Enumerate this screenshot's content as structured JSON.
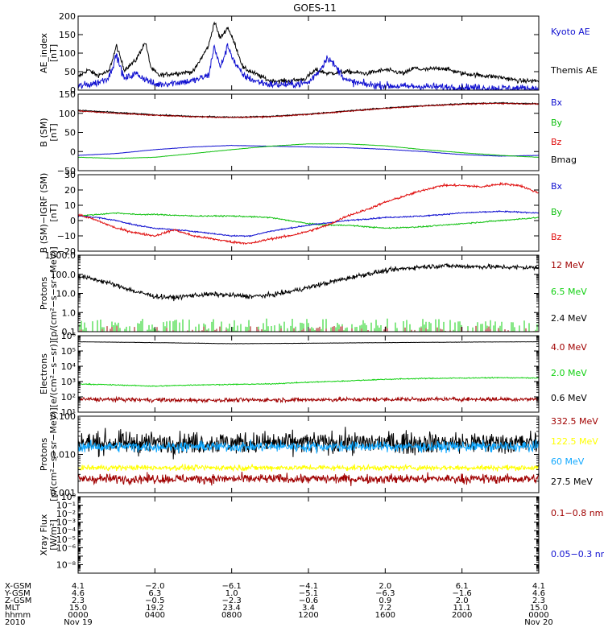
{
  "title": "GOES-11",
  "colors": {
    "black": "#000000",
    "blue": "#1010d0",
    "green": "#10c010",
    "red": "#e01010",
    "darkred": "#a00000",
    "lightgreen": "#10d010",
    "cyan": "#10a8ff",
    "yellow": "#ffff00"
  },
  "chart_data": [
    {
      "id": "ae",
      "type": "line",
      "ylabel": [
        "AE_index",
        "[nT]"
      ],
      "ylim": [
        0,
        200
      ],
      "scale": "linear",
      "yticks": [
        {
          "v": 0,
          "label": "0"
        },
        {
          "v": 50,
          "label": "50"
        },
        {
          "v": 100,
          "label": "100"
        },
        {
          "v": 150,
          "label": "150"
        },
        {
          "v": 200,
          "label": "200"
        }
      ],
      "legend": [
        {
          "text": "Kyoto AE",
          "color": "blue"
        },
        {
          "text": "Themis AE",
          "color": "black"
        }
      ],
      "series": [
        {
          "name": "Themis AE",
          "color": "black",
          "noise": 6,
          "x": [
            0,
            0.5,
            1,
            1.6,
            2,
            2.4,
            3,
            3.5,
            3.8,
            4.2,
            5,
            6,
            6.8,
            7.1,
            7.4,
            7.8,
            8.2,
            8.6,
            9.2,
            10,
            11,
            11.8,
            12.4,
            13,
            14,
            15,
            16,
            17,
            17.5,
            18,
            19,
            20,
            21,
            22,
            23,
            24
          ],
          "y": [
            35,
            55,
            40,
            50,
            120,
            55,
            80,
            130,
            60,
            40,
            45,
            50,
            120,
            185,
            140,
            170,
            120,
            60,
            45,
            25,
            25,
            30,
            55,
            45,
            50,
            45,
            55,
            45,
            60,
            55,
            60,
            45,
            40,
            35,
            25,
            25
          ]
        },
        {
          "name": "Kyoto AE",
          "color": "blue",
          "noise": 10,
          "x": [
            0,
            0.5,
            1,
            1.6,
            2,
            2.4,
            3,
            3.5,
            4,
            5,
            6,
            6.8,
            7.1,
            7.4,
            7.8,
            8.2,
            8.6,
            9.2,
            10,
            11,
            12,
            12.6,
            13,
            14,
            15,
            16,
            17,
            18,
            19,
            20,
            21,
            22,
            23,
            24
          ],
          "y": [
            10,
            15,
            20,
            35,
            95,
            30,
            45,
            30,
            15,
            20,
            25,
            40,
            120,
            60,
            120,
            70,
            40,
            25,
            15,
            15,
            20,
            55,
            90,
            25,
            15,
            12,
            10,
            10,
            8,
            8,
            6,
            5,
            5,
            5
          ]
        }
      ]
    },
    {
      "id": "b_sm",
      "type": "line",
      "ylabel": [
        "B (SM)",
        "[nT]"
      ],
      "ylim": [
        -50,
        150
      ],
      "scale": "linear",
      "yticks": [
        {
          "v": -50,
          "label": "−50"
        },
        {
          "v": 0,
          "label": "0"
        },
        {
          "v": 50,
          "label": "50"
        },
        {
          "v": 100,
          "label": "100"
        },
        {
          "v": 150,
          "label": "150"
        }
      ],
      "legend": [
        {
          "text": "Bx",
          "color": "blue"
        },
        {
          "text": "By",
          "color": "green"
        },
        {
          "text": "Bz",
          "color": "red"
        },
        {
          "text": "Bmag",
          "color": "black"
        }
      ],
      "series": [
        {
          "name": "Bmag",
          "color": "black",
          "noise": 1.5,
          "x": [
            0,
            2,
            4,
            6,
            8,
            10,
            12,
            14,
            16,
            18,
            20,
            22,
            24
          ],
          "y": [
            108,
            102,
            96,
            92,
            90,
            92,
            98,
            106,
            114,
            120,
            125,
            127,
            125
          ]
        },
        {
          "name": "Bz",
          "color": "darkred",
          "noise": 1.5,
          "x": [
            0,
            2,
            4,
            6,
            8,
            10,
            12,
            14,
            16,
            18,
            20,
            22,
            24
          ],
          "y": [
            106,
            100,
            95,
            91,
            89,
            91,
            97,
            105,
            113,
            119,
            124,
            126,
            124
          ]
        },
        {
          "name": "Bx",
          "color": "blue",
          "noise": 0.4,
          "x": [
            0,
            2,
            4,
            6,
            8,
            10,
            12,
            14,
            16,
            18,
            20,
            22,
            24
          ],
          "y": [
            -10,
            -5,
            5,
            12,
            16,
            14,
            12,
            10,
            6,
            0,
            -8,
            -12,
            -10
          ]
        },
        {
          "name": "By",
          "color": "green",
          "noise": 0.4,
          "x": [
            0,
            2,
            4,
            6,
            8,
            10,
            12,
            14,
            16,
            18,
            20,
            22,
            24
          ],
          "y": [
            -15,
            -18,
            -15,
            -5,
            5,
            14,
            20,
            20,
            15,
            5,
            -3,
            -10,
            -15
          ]
        }
      ]
    },
    {
      "id": "b_igrf",
      "type": "line",
      "ylabel": [
        "B (SM)−IGRF (SM)",
        "[nT]"
      ],
      "ylim": [
        -20,
        30
      ],
      "scale": "linear",
      "yticks": [
        {
          "v": -20,
          "label": "−20"
        },
        {
          "v": -10,
          "label": "−10"
        },
        {
          "v": 0,
          "label": "0"
        },
        {
          "v": 10,
          "label": "10"
        },
        {
          "v": 20,
          "label": "20"
        },
        {
          "v": 30,
          "label": "30"
        }
      ],
      "legend": [
        {
          "text": "Bx",
          "color": "blue"
        },
        {
          "text": "By",
          "color": "green"
        },
        {
          "text": "Bz",
          "color": "red"
        }
      ],
      "series": [
        {
          "name": "By",
          "color": "green",
          "noise": 0.4,
          "x": [
            0,
            1,
            2,
            3,
            4,
            6,
            8,
            10,
            12,
            13,
            14,
            16,
            18,
            20,
            22,
            24
          ],
          "y": [
            3,
            4,
            5,
            4,
            4,
            3,
            3,
            2,
            -2,
            -3,
            -3,
            -5,
            -4,
            -2,
            0,
            2
          ]
        },
        {
          "name": "Bx",
          "color": "blue",
          "noise": 0.4,
          "x": [
            0,
            1,
            2,
            3,
            4,
            6,
            8,
            9,
            10,
            12,
            14,
            16,
            18,
            20,
            22,
            24
          ],
          "y": [
            3,
            2,
            0,
            -3,
            -5,
            -7,
            -10,
            -10,
            -7,
            -3,
            0,
            2,
            3,
            5,
            6,
            5
          ]
        },
        {
          "name": "Bz",
          "color": "red",
          "noise": 0.7,
          "x": [
            0,
            1,
            2,
            3,
            4,
            5,
            6,
            7,
            8,
            9,
            10,
            11,
            12,
            13,
            14,
            15,
            16,
            17,
            18,
            19,
            20,
            21,
            22,
            23,
            24
          ],
          "y": [
            4,
            0,
            -5,
            -8,
            -10,
            -6,
            -10,
            -12,
            -14,
            -15,
            -12,
            -10,
            -7,
            -3,
            3,
            7,
            12,
            16,
            20,
            23,
            23,
            22,
            24,
            23,
            18
          ]
        }
      ]
    },
    {
      "id": "protons_low",
      "type": "line",
      "ylabel": [
        "Protons",
        "[p/(cm²−s−sr−MeV)]"
      ],
      "ylim": [
        0.1,
        1000
      ],
      "scale": "log",
      "yticks": [
        {
          "v": 0.1,
          "label": "0.1"
        },
        {
          "v": 1,
          "label": "1.0"
        },
        {
          "v": 10,
          "label": "10.0"
        },
        {
          "v": 100,
          "label": "100.0"
        },
        {
          "v": 1000,
          "label": "1000.0"
        }
      ],
      "legend": [
        {
          "text": "12 MeV",
          "color": "darkred"
        },
        {
          "text": "6.5 MeV",
          "color": "lightgreen"
        },
        {
          "text": "2.4 MeV",
          "color": "black"
        }
      ],
      "series": [
        {
          "name": "2.4 MeV",
          "color": "black",
          "noise": 0.12,
          "x": [
            0,
            1,
            2,
            3,
            4,
            5,
            6,
            7,
            8,
            9,
            10,
            11,
            12,
            13,
            14,
            15,
            16,
            17,
            18,
            19,
            20,
            21,
            22,
            23,
            24
          ],
          "y": [
            80,
            50,
            25,
            12,
            7,
            6,
            8,
            9,
            8,
            7,
            8,
            12,
            20,
            35,
            60,
            100,
            150,
            200,
            250,
            280,
            260,
            250,
            240,
            230,
            220
          ]
        },
        {
          "name": "6.5 MeV",
          "color": "lightgreen",
          "spikes": true,
          "base": 0.1,
          "spikeMax": 0.5,
          "density": 0.55
        },
        {
          "name": "12 MeV",
          "color": "darkred",
          "spikes": true,
          "base": 0.1,
          "spikeMax": 0.2,
          "density": 0.25
        }
      ]
    },
    {
      "id": "electrons",
      "type": "line",
      "ylabel": [
        "Electrons",
        "[e/(cm²−s−sr)]"
      ],
      "ylim": [
        10,
        1000000
      ],
      "scale": "log",
      "yticks": [
        {
          "v": 10,
          "label": "10¹"
        },
        {
          "v": 100,
          "label": "10²"
        },
        {
          "v": 1000,
          "label": "10³"
        },
        {
          "v": 10000,
          "label": "10⁴"
        },
        {
          "v": 100000,
          "label": "10⁵"
        },
        {
          "v": 1000000,
          "label": "10⁶"
        }
      ],
      "legend": [
        {
          "text": "4.0 MeV",
          "color": "darkred"
        },
        {
          "text": "2.0 MeV",
          "color": "lightgreen"
        },
        {
          "text": "0.6 MeV",
          "color": "black"
        }
      ],
      "series": [
        {
          "name": "0.6 MeV",
          "color": "black",
          "noise": 0.01,
          "x": [
            0,
            4,
            8,
            12,
            16,
            20,
            24
          ],
          "y": [
            400000,
            350000,
            300000,
            320000,
            350000,
            380000,
            400000
          ]
        },
        {
          "name": "2.0 MeV",
          "color": "lightgreen",
          "noise": 0.03,
          "x": [
            0,
            2,
            4,
            6,
            8,
            10,
            12,
            14,
            16,
            18,
            20,
            22,
            24
          ],
          "y": [
            700,
            600,
            500,
            600,
            650,
            700,
            900,
            1100,
            1400,
            1600,
            1700,
            1800,
            1700
          ]
        },
        {
          "name": "4.0 MeV",
          "color": "darkred",
          "noise": 0.13,
          "x": [
            0,
            6,
            12,
            18,
            24
          ],
          "y": [
            70,
            60,
            65,
            70,
            70
          ]
        }
      ]
    },
    {
      "id": "protons_high",
      "type": "line",
      "ylabel": [
        "Protons",
        "[p/(cm²−s−sr−MeV)]"
      ],
      "ylim": [
        0.001,
        0.1
      ],
      "scale": "log",
      "yticks": [
        {
          "v": 0.001,
          "label": "0.001"
        },
        {
          "v": 0.01,
          "label": "0.010"
        },
        {
          "v": 0.1,
          "label": "0.100"
        }
      ],
      "legend": [
        {
          "text": "332.5 MeV",
          "color": "darkred"
        },
        {
          "text": "122.5 MeV",
          "color": "yellow"
        },
        {
          "text": "60 MeV",
          "color": "cyan"
        },
        {
          "text": "27.5 MeV",
          "color": "black"
        }
      ],
      "series": [
        {
          "name": "27.5 MeV",
          "color": "black",
          "noise": 0.28,
          "x": [
            0,
            24
          ],
          "y": [
            0.02,
            0.02
          ]
        },
        {
          "name": "60 MeV",
          "color": "cyan",
          "noise": 0.13,
          "x": [
            0,
            24
          ],
          "y": [
            0.016,
            0.016
          ]
        },
        {
          "name": "122.5 MeV",
          "color": "yellow",
          "noise": 0.07,
          "x": [
            0,
            24
          ],
          "y": [
            0.0045,
            0.0045
          ]
        },
        {
          "name": "332.5 MeV",
          "color": "darkred",
          "noise": 0.12,
          "x": [
            0,
            24
          ],
          "y": [
            0.0023,
            0.0023
          ]
        }
      ]
    },
    {
      "id": "xray",
      "type": "line",
      "ylabel": [
        "Xray Flux",
        "[W/m²]"
      ],
      "ylim": [
        1e-09,
        1
      ],
      "scale": "log",
      "yticks": [
        {
          "v": 1e-09,
          "label": ""
        },
        {
          "v": 1e-08,
          "label": "10⁻⁸"
        },
        {
          "v": 1e-07,
          "label": ""
        },
        {
          "v": 1e-06,
          "label": "10⁻⁶"
        },
        {
          "v": 1e-05,
          "label": "10⁻⁵"
        },
        {
          "v": 0.0001,
          "label": "10⁻⁴"
        },
        {
          "v": 0.001,
          "label": "10⁻³"
        },
        {
          "v": 0.01,
          "label": "10⁻²"
        },
        {
          "v": 0.1,
          "label": "10⁻¹"
        },
        {
          "v": 1,
          "label": "10⁰"
        }
      ],
      "legend": [
        {
          "text": "0.1−0.8 nm",
          "color": "darkred"
        },
        {
          "text": "0.05−0.3 nm",
          "color": "blue"
        }
      ],
      "series": []
    }
  ],
  "x_axis": {
    "hours": [
      0,
      4,
      8,
      12,
      16,
      20,
      24
    ],
    "row_labels": [
      "X-GSM",
      "Y-GSM",
      "Z-GSM",
      "MLT",
      "hhmm",
      "2010"
    ],
    "columns": [
      [
        "4.1",
        "4.6",
        "2.3",
        "15.0",
        "0000",
        "Nov 19"
      ],
      [
        "−2.0",
        "6.3",
        "−0.5",
        "19.2",
        "0400",
        ""
      ],
      [
        "−6.1",
        "1.0",
        "−2.3",
        "23.4",
        "0800",
        ""
      ],
      [
        "−4.1",
        "−5.1",
        "−0.6",
        "3.4",
        "1200",
        ""
      ],
      [
        "2.0",
        "−6.3",
        "0.9",
        "7.2",
        "1600",
        ""
      ],
      [
        "6.1",
        "−1.6",
        "2.0",
        "11.1",
        "2000",
        ""
      ],
      [
        "4.1",
        "4.6",
        "2.3",
        "15.0",
        "0000",
        "Nov 20"
      ]
    ]
  }
}
